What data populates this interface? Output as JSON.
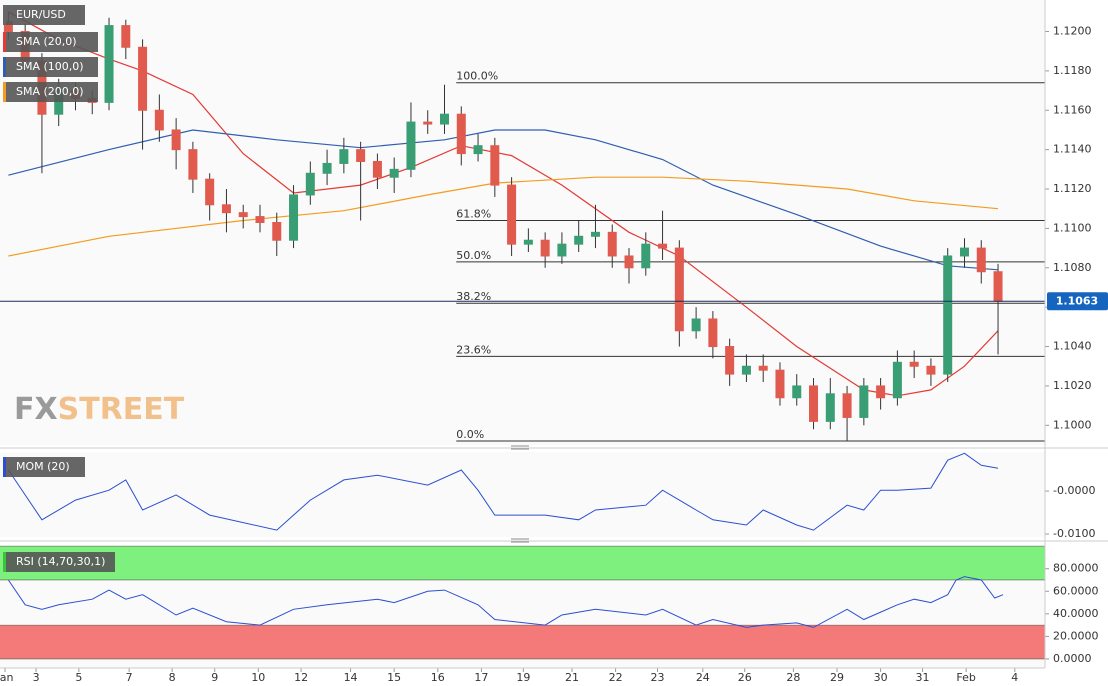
{
  "chart_data": {
    "type": "candlestick",
    "symbol": "EUR/USD",
    "xlim": [
      -0.5,
      61.8
    ],
    "xticks": [
      {
        "value": -0.2,
        "label": "Jan"
      },
      {
        "value": 1.65,
        "label": "3"
      },
      {
        "value": 4.2,
        "label": "5"
      },
      {
        "value": 7.2,
        "label": "7"
      },
      {
        "value": 9.76,
        "label": "8"
      },
      {
        "value": 12.3,
        "label": "9"
      },
      {
        "value": 14.9,
        "label": "10"
      },
      {
        "value": 17.45,
        "label": "12"
      },
      {
        "value": 20.4,
        "label": "14"
      },
      {
        "value": 23,
        "label": "15"
      },
      {
        "value": 25.6,
        "label": "16"
      },
      {
        "value": 28.2,
        "label": "17"
      },
      {
        "value": 30.7,
        "label": "19"
      },
      {
        "value": 33.6,
        "label": "21"
      },
      {
        "value": 36.2,
        "label": "22"
      },
      {
        "value": 38.7,
        "label": "23"
      },
      {
        "value": 41.4,
        "label": "24"
      },
      {
        "value": 43.9,
        "label": "26"
      },
      {
        "value": 46.8,
        "label": "28"
      },
      {
        "value": 49.4,
        "label": "29"
      },
      {
        "value": 52,
        "label": "30"
      },
      {
        "value": 54.5,
        "label": "31"
      },
      {
        "value": 57.1,
        "label": "Feb"
      },
      {
        "value": 60,
        "label": "4"
      }
    ],
    "ylim": [
      1.099,
      1.1216
    ],
    "yticks": [
      {
        "value": 1.1,
        "label": "1.1000"
      },
      {
        "value": 1.102,
        "label": "1.1020"
      },
      {
        "value": 1.104,
        "label": "1.1040"
      },
      {
        "value": 1.106,
        "label": "1.1060"
      },
      {
        "value": 1.108,
        "label": "1.1080"
      },
      {
        "value": 1.11,
        "label": "1.1100"
      },
      {
        "value": 1.112,
        "label": "1.1120"
      },
      {
        "value": 1.114,
        "label": "1.1140"
      },
      {
        "value": 1.116,
        "label": "1.1160"
      },
      {
        "value": 1.118,
        "label": "1.1180"
      },
      {
        "value": 1.12,
        "label": "1.1200"
      }
    ],
    "up_color": "#3a9e74",
    "down_color": "#e05a4e",
    "candles": {
      "open": [
        1.1205,
        1.12,
        1.1185,
        1.1158,
        1.117,
        1.1166,
        1.1164,
        1.1203,
        1.1192,
        1.116,
        1.115,
        1.114,
        1.1125,
        1.1112,
        1.1108,
        1.1106,
        1.1103,
        1.1094,
        1.1117,
        1.1128,
        1.1133,
        1.114,
        1.1134,
        1.1126,
        1.113,
        1.1154,
        1.1153,
        1.1158,
        1.1138,
        1.1142,
        1.1122,
        1.1092,
        1.1094,
        1.1086,
        1.1092,
        1.1096,
        1.1098,
        1.1086,
        1.108,
        1.1092,
        1.109,
        1.1048,
        1.1054,
        1.104,
        1.1026,
        1.103,
        1.1028,
        1.1014,
        1.102,
        1.1002,
        1.1016,
        1.1004,
        1.102,
        1.1014,
        1.1032,
        1.103,
        1.1026,
        1.1086,
        1.109,
        1.1078
      ],
      "high": [
        1.121,
        1.1204,
        1.1189,
        1.1176,
        1.1174,
        1.117,
        1.1207,
        1.1206,
        1.1196,
        1.1168,
        1.1156,
        1.1144,
        1.1128,
        1.112,
        1.1112,
        1.1112,
        1.1108,
        1.1122,
        1.1134,
        1.114,
        1.1146,
        1.1144,
        1.1138,
        1.1136,
        1.1164,
        1.116,
        1.1173,
        1.1162,
        1.1148,
        1.1146,
        1.1126,
        1.11,
        1.1098,
        1.1098,
        1.1104,
        1.1112,
        1.1102,
        1.109,
        1.1098,
        1.1109,
        1.1094,
        1.106,
        1.1058,
        1.1044,
        1.1036,
        1.1036,
        1.1032,
        1.1026,
        1.1024,
        1.1024,
        1.102,
        1.1024,
        1.1024,
        1.1038,
        1.1038,
        1.1034,
        1.109,
        1.1095,
        1.1094,
        1.1082
      ],
      "low": [
        1.1196,
        1.118,
        1.1128,
        1.1152,
        1.116,
        1.1158,
        1.116,
        1.1186,
        1.114,
        1.1144,
        1.113,
        1.1118,
        1.1104,
        1.1098,
        1.11,
        1.1098,
        1.1086,
        1.109,
        1.1112,
        1.1122,
        1.1128,
        1.1104,
        1.112,
        1.1118,
        1.1126,
        1.1148,
        1.1148,
        1.1132,
        1.1134,
        1.1116,
        1.1086,
        1.1088,
        1.108,
        1.1082,
        1.1088,
        1.109,
        1.108,
        1.1072,
        1.1076,
        1.1084,
        1.104,
        1.1044,
        1.1034,
        1.102,
        1.1022,
        1.1022,
        1.101,
        1.101,
        1.0998,
        1.0998,
        1.0992,
        1.1,
        1.1008,
        1.101,
        1.1024,
        1.102,
        1.1022,
        1.108,
        1.1072,
        1.1036
      ],
      "close": [
        1.12,
        1.1185,
        1.1158,
        1.117,
        1.1166,
        1.1164,
        1.1203,
        1.1192,
        1.116,
        1.115,
        1.114,
        1.1125,
        1.1112,
        1.1108,
        1.1106,
        1.1103,
        1.1094,
        1.1117,
        1.1128,
        1.1133,
        1.114,
        1.1134,
        1.1126,
        1.113,
        1.1154,
        1.1153,
        1.1158,
        1.1138,
        1.1142,
        1.1122,
        1.1092,
        1.1094,
        1.1086,
        1.1092,
        1.1096,
        1.1098,
        1.1086,
        1.108,
        1.1092,
        1.109,
        1.1048,
        1.1054,
        1.104,
        1.1026,
        1.103,
        1.1028,
        1.1014,
        1.102,
        1.1002,
        1.1016,
        1.1004,
        1.102,
        1.1014,
        1.1032,
        1.103,
        1.1026,
        1.1086,
        1.109,
        1.1078,
        1.1063
      ]
    },
    "overlays": [
      {
        "name": "SMA (20,0)",
        "color": "#e53935",
        "x": [
          0,
          3,
          6,
          8,
          11,
          14,
          17,
          21,
          24,
          27,
          30,
          33,
          37,
          40,
          44,
          47,
          51,
          53,
          55,
          57,
          59
        ],
        "values": [
          1.121,
          1.1196,
          1.1186,
          1.118,
          1.1168,
          1.1138,
          1.1118,
          1.1122,
          1.1131,
          1.1142,
          1.1137,
          1.1122,
          1.1098,
          1.1086,
          1.106,
          1.104,
          1.1018,
          1.1015,
          1.1018,
          1.103,
          1.1048
        ]
      },
      {
        "name": "SMA (100,0)",
        "color": "#2f5fb0",
        "x": [
          0,
          6,
          11,
          16,
          21,
          26,
          29,
          32,
          35,
          39,
          42,
          47,
          52,
          56,
          59
        ],
        "values": [
          1.1127,
          1.114,
          1.115,
          1.1145,
          1.1141,
          1.1145,
          1.115,
          1.115,
          1.1145,
          1.1135,
          1.1122,
          1.1107,
          1.1091,
          1.1081,
          1.1079
        ]
      },
      {
        "name": "SMA (200,0)",
        "color": "#f39c1f",
        "x": [
          0,
          6,
          14,
          20,
          25,
          29,
          35,
          39,
          44,
          50,
          54,
          59
        ],
        "values": [
          1.1086,
          1.1096,
          1.1104,
          1.1109,
          1.1117,
          1.1123,
          1.1126,
          1.1126,
          1.1124,
          1.112,
          1.1114,
          1.111
        ]
      }
    ],
    "fibonacci": {
      "x": 26.7,
      "levels": [
        {
          "label": "100.0%",
          "value": 1.1174
        },
        {
          "label": "61.8%",
          "value": 1.1104
        },
        {
          "label": "50.0%",
          "value": 1.1083
        },
        {
          "label": "38.2%",
          "value": 1.1062
        },
        {
          "label": "23.6%",
          "value": 1.1035
        },
        {
          "label": "0.0%",
          "value": 1.0992
        }
      ]
    },
    "last_price": {
      "value": 1.1063,
      "label": "1.1063"
    },
    "watermark": [
      "FX",
      "STREET"
    ],
    "panels": [
      {
        "type": "line",
        "name": "MOM (20)",
        "color": "#2b4fd1",
        "ylim": [
          -0.0107,
          0.0091
        ],
        "yticks": [
          {
            "value": 0,
            "label": "-0.0000"
          },
          {
            "value": -0.01,
            "label": "-0.0100"
          }
        ],
        "x": [
          0,
          2,
          4,
          6,
          7,
          8,
          10,
          12,
          16,
          18,
          20,
          22,
          25,
          27,
          28,
          29,
          32,
          34,
          35,
          38,
          39,
          40,
          41,
          42,
          44,
          45,
          47,
          48,
          50,
          51,
          52,
          53,
          55,
          56,
          57,
          58,
          59
        ],
        "values": [
          0.0049,
          -0.0067,
          -0.0021,
          0.0002,
          0.0026,
          -0.0044,
          -0.0009,
          -0.0056,
          -0.0091,
          -0.0021,
          0.0026,
          0.0037,
          0.0014,
          0.0049,
          0.0002,
          -0.0056,
          -0.0056,
          -0.0067,
          -0.0044,
          -0.0033,
          0.0002,
          -0.0021,
          -0.0044,
          -0.0067,
          -0.0079,
          -0.0044,
          -0.0079,
          -0.0091,
          -0.0033,
          -0.0044,
          0.0002,
          0.0002,
          0.0007,
          0.0072,
          0.0088,
          0.006,
          0.0053
        ]
      },
      {
        "type": "line",
        "name": "RSI (14,70,30,1)",
        "color": "#2b4fd1",
        "ylim": [
          -8,
          101
        ],
        "yticks": [
          {
            "value": 0,
            "label": "0.0000"
          },
          {
            "value": 20,
            "label": "20.0000"
          },
          {
            "value": 40,
            "label": "40.0000"
          },
          {
            "value": 60,
            "label": "60.0000"
          },
          {
            "value": 80,
            "label": "80.0000"
          }
        ],
        "bands": [
          {
            "from": 70,
            "to": 100,
            "color": "#7ef07e"
          },
          {
            "from": 0,
            "to": 30,
            "color": "#f47a7a"
          }
        ],
        "x": [
          0,
          1,
          2,
          3,
          5,
          6,
          7,
          8,
          10,
          11,
          13,
          15,
          17,
          19,
          22,
          23,
          25,
          26,
          28,
          29,
          32,
          33,
          35,
          38,
          39,
          41,
          42,
          44,
          45,
          47,
          48,
          50,
          51,
          53,
          54,
          55,
          56,
          56.5,
          57,
          58,
          58.8,
          59.3
        ],
        "values": [
          70,
          48,
          44,
          48,
          53,
          61,
          53,
          57,
          39,
          45,
          33,
          30,
          44,
          48,
          53,
          50,
          60,
          61,
          48,
          35,
          30,
          39,
          44,
          39,
          44,
          30,
          35,
          28,
          30,
          32,
          28,
          44,
          35,
          48,
          53,
          50,
          57,
          70,
          73,
          70,
          54,
          57
        ]
      }
    ]
  }
}
